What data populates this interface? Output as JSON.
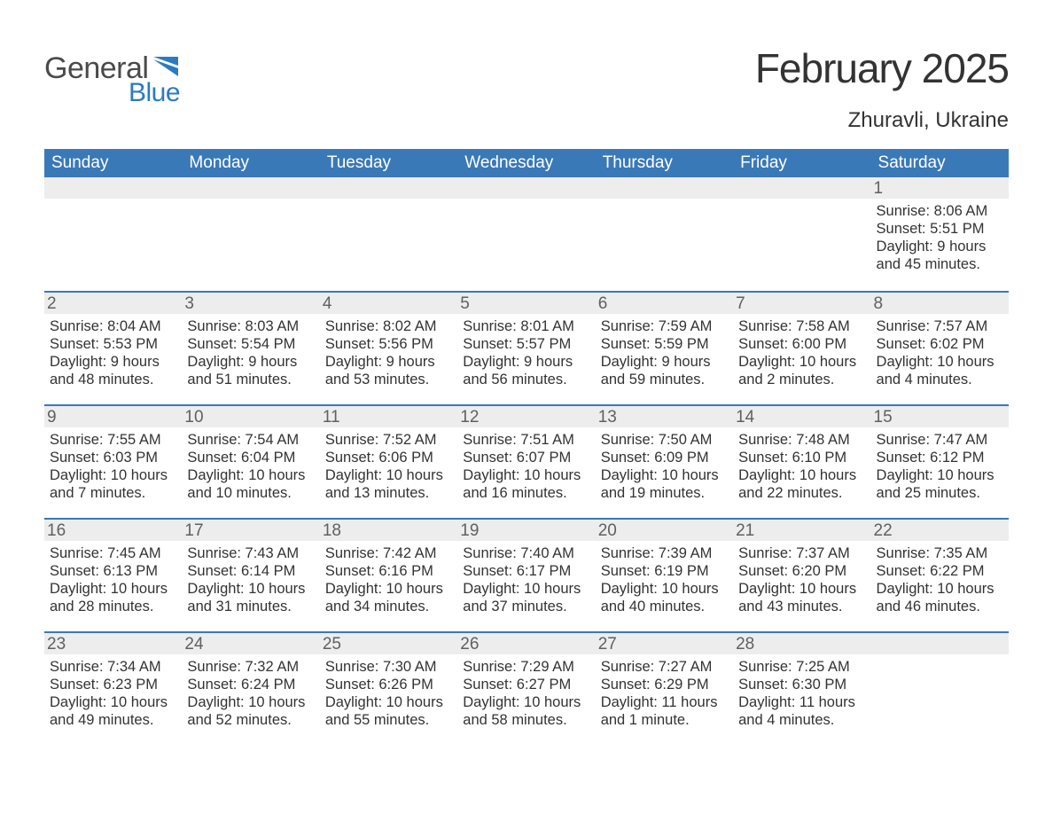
{
  "logo": {
    "text1": "General",
    "text2": "Blue",
    "shape_color": "#2b7bbf",
    "text1_color": "#4a4a4a"
  },
  "title": "February 2025",
  "location": "Zhuravli, Ukraine",
  "colors": {
    "header_bg": "#3a79b7",
    "header_text": "#ffffff",
    "daynum_bg": "#ededed",
    "daynum_text": "#606060",
    "body_text": "#333333",
    "week_border": "#3a79b7",
    "page_bg": "#ffffff"
  },
  "fonts": {
    "title_pt": 46,
    "location_pt": 24,
    "dow_pt": 19,
    "daynum_pt": 19,
    "body_pt": 16.5
  },
  "days_of_week": [
    "Sunday",
    "Monday",
    "Tuesday",
    "Wednesday",
    "Thursday",
    "Friday",
    "Saturday"
  ],
  "first_day_column": 6,
  "num_days": 28,
  "weeks": [
    [
      null,
      null,
      null,
      null,
      null,
      null,
      {
        "n": "1",
        "sunrise": "Sunrise: 8:06 AM",
        "sunset": "Sunset: 5:51 PM",
        "daylight": "Daylight: 9 hours and 45 minutes."
      }
    ],
    [
      {
        "n": "2",
        "sunrise": "Sunrise: 8:04 AM",
        "sunset": "Sunset: 5:53 PM",
        "daylight": "Daylight: 9 hours and 48 minutes."
      },
      {
        "n": "3",
        "sunrise": "Sunrise: 8:03 AM",
        "sunset": "Sunset: 5:54 PM",
        "daylight": "Daylight: 9 hours and 51 minutes."
      },
      {
        "n": "4",
        "sunrise": "Sunrise: 8:02 AM",
        "sunset": "Sunset: 5:56 PM",
        "daylight": "Daylight: 9 hours and 53 minutes."
      },
      {
        "n": "5",
        "sunrise": "Sunrise: 8:01 AM",
        "sunset": "Sunset: 5:57 PM",
        "daylight": "Daylight: 9 hours and 56 minutes."
      },
      {
        "n": "6",
        "sunrise": "Sunrise: 7:59 AM",
        "sunset": "Sunset: 5:59 PM",
        "daylight": "Daylight: 9 hours and 59 minutes."
      },
      {
        "n": "7",
        "sunrise": "Sunrise: 7:58 AM",
        "sunset": "Sunset: 6:00 PM",
        "daylight": "Daylight: 10 hours and 2 minutes."
      },
      {
        "n": "8",
        "sunrise": "Sunrise: 7:57 AM",
        "sunset": "Sunset: 6:02 PM",
        "daylight": "Daylight: 10 hours and 4 minutes."
      }
    ],
    [
      {
        "n": "9",
        "sunrise": "Sunrise: 7:55 AM",
        "sunset": "Sunset: 6:03 PM",
        "daylight": "Daylight: 10 hours and 7 minutes."
      },
      {
        "n": "10",
        "sunrise": "Sunrise: 7:54 AM",
        "sunset": "Sunset: 6:04 PM",
        "daylight": "Daylight: 10 hours and 10 minutes."
      },
      {
        "n": "11",
        "sunrise": "Sunrise: 7:52 AM",
        "sunset": "Sunset: 6:06 PM",
        "daylight": "Daylight: 10 hours and 13 minutes."
      },
      {
        "n": "12",
        "sunrise": "Sunrise: 7:51 AM",
        "sunset": "Sunset: 6:07 PM",
        "daylight": "Daylight: 10 hours and 16 minutes."
      },
      {
        "n": "13",
        "sunrise": "Sunrise: 7:50 AM",
        "sunset": "Sunset: 6:09 PM",
        "daylight": "Daylight: 10 hours and 19 minutes."
      },
      {
        "n": "14",
        "sunrise": "Sunrise: 7:48 AM",
        "sunset": "Sunset: 6:10 PM",
        "daylight": "Daylight: 10 hours and 22 minutes."
      },
      {
        "n": "15",
        "sunrise": "Sunrise: 7:47 AM",
        "sunset": "Sunset: 6:12 PM",
        "daylight": "Daylight: 10 hours and 25 minutes."
      }
    ],
    [
      {
        "n": "16",
        "sunrise": "Sunrise: 7:45 AM",
        "sunset": "Sunset: 6:13 PM",
        "daylight": "Daylight: 10 hours and 28 minutes."
      },
      {
        "n": "17",
        "sunrise": "Sunrise: 7:43 AM",
        "sunset": "Sunset: 6:14 PM",
        "daylight": "Daylight: 10 hours and 31 minutes."
      },
      {
        "n": "18",
        "sunrise": "Sunrise: 7:42 AM",
        "sunset": "Sunset: 6:16 PM",
        "daylight": "Daylight: 10 hours and 34 minutes."
      },
      {
        "n": "19",
        "sunrise": "Sunrise: 7:40 AM",
        "sunset": "Sunset: 6:17 PM",
        "daylight": "Daylight: 10 hours and 37 minutes."
      },
      {
        "n": "20",
        "sunrise": "Sunrise: 7:39 AM",
        "sunset": "Sunset: 6:19 PM",
        "daylight": "Daylight: 10 hours and 40 minutes."
      },
      {
        "n": "21",
        "sunrise": "Sunrise: 7:37 AM",
        "sunset": "Sunset: 6:20 PM",
        "daylight": "Daylight: 10 hours and 43 minutes."
      },
      {
        "n": "22",
        "sunrise": "Sunrise: 7:35 AM",
        "sunset": "Sunset: 6:22 PM",
        "daylight": "Daylight: 10 hours and 46 minutes."
      }
    ],
    [
      {
        "n": "23",
        "sunrise": "Sunrise: 7:34 AM",
        "sunset": "Sunset: 6:23 PM",
        "daylight": "Daylight: 10 hours and 49 minutes."
      },
      {
        "n": "24",
        "sunrise": "Sunrise: 7:32 AM",
        "sunset": "Sunset: 6:24 PM",
        "daylight": "Daylight: 10 hours and 52 minutes."
      },
      {
        "n": "25",
        "sunrise": "Sunrise: 7:30 AM",
        "sunset": "Sunset: 6:26 PM",
        "daylight": "Daylight: 10 hours and 55 minutes."
      },
      {
        "n": "26",
        "sunrise": "Sunrise: 7:29 AM",
        "sunset": "Sunset: 6:27 PM",
        "daylight": "Daylight: 10 hours and 58 minutes."
      },
      {
        "n": "27",
        "sunrise": "Sunrise: 7:27 AM",
        "sunset": "Sunset: 6:29 PM",
        "daylight": "Daylight: 11 hours and 1 minute."
      },
      {
        "n": "28",
        "sunrise": "Sunrise: 7:25 AM",
        "sunset": "Sunset: 6:30 PM",
        "daylight": "Daylight: 11 hours and 4 minutes."
      },
      null
    ]
  ]
}
